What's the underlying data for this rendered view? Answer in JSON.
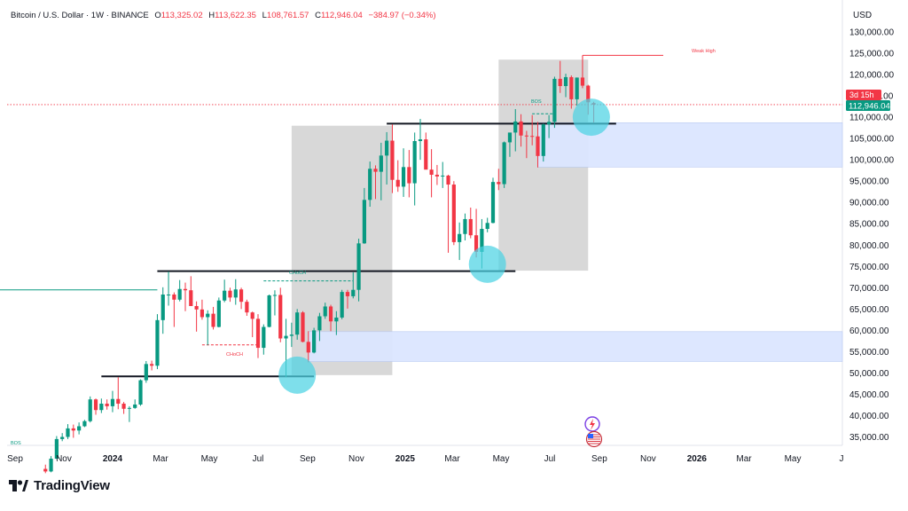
{
  "header": {
    "symbol": "Bitcoin / U.S. Dollar · 1W · BINANCE",
    "o_label": "O",
    "o_value": "113,325.02",
    "h_label": "H",
    "h_value": "113,622.35",
    "l_label": "L",
    "l_value": "108,761.57",
    "c_label": "C",
    "c_value": "112,946.04",
    "change": "−384.97 (−0.34%)"
  },
  "currency": "USD",
  "brand": "TradingView",
  "price_tag": {
    "countdown": "3d 15h",
    "price": "112,946.04"
  },
  "annotations": {
    "bos_left": "BOS",
    "bos_top": "BOS",
    "choch_mid": "CHoCH",
    "choch_low": "CHoCH",
    "weak_high": "Weak High"
  },
  "colors": {
    "up": "#089981",
    "down": "#f23645",
    "zone_gray": "#c8c8c8",
    "zone_blue": "#dbe6ff",
    "circle": "#4cd3e3",
    "level_line": "#131722"
  },
  "chart_data": {
    "type": "candlestick",
    "title": "Bitcoin / U.S. Dollar · 1W · BINANCE",
    "y_axis": {
      "unit": "USD",
      "ticks": [
        35000,
        40000,
        45000,
        50000,
        55000,
        60000,
        65000,
        70000,
        75000,
        80000,
        85000,
        90000,
        95000,
        100000,
        105000,
        110000,
        115000,
        120000,
        125000,
        130000
      ],
      "tick_labels": [
        "35,000.00",
        "40,000.00",
        "45,000.00",
        "50,000.00",
        "55,000.00",
        "60,000.00",
        "65,000.00",
        "70,000.00",
        "75,000.00",
        "80,000.00",
        "85,000.00",
        "90,000.00",
        "95,000.00",
        "100,000.00",
        "105,000.00",
        "110,000.00",
        "115,000.00",
        "120,000.00",
        "125,000.00",
        "130,000.00"
      ]
    },
    "x_axis": {
      "ticks": [
        {
          "label": "Sep",
          "date": "2023-09-01",
          "bold": false
        },
        {
          "label": "Nov",
          "date": "2023-11-01",
          "bold": false
        },
        {
          "label": "2024",
          "date": "2024-01-01",
          "bold": true
        },
        {
          "label": "Mar",
          "date": "2024-03-01",
          "bold": false
        },
        {
          "label": "May",
          "date": "2024-05-01",
          "bold": false
        },
        {
          "label": "Jul",
          "date": "2024-07-01",
          "bold": false
        },
        {
          "label": "Sep",
          "date": "2024-09-01",
          "bold": false
        },
        {
          "label": "Nov",
          "date": "2024-11-01",
          "bold": false
        },
        {
          "label": "2025",
          "date": "2025-01-01",
          "bold": true
        },
        {
          "label": "Mar",
          "date": "2025-03-01",
          "bold": false
        },
        {
          "label": "May",
          "date": "2025-05-01",
          "bold": false
        },
        {
          "label": "Jul",
          "date": "2025-07-01",
          "bold": false
        },
        {
          "label": "Sep",
          "date": "2025-09-01",
          "bold": false
        },
        {
          "label": "Nov",
          "date": "2025-11-01",
          "bold": false
        },
        {
          "label": "2026",
          "date": "2026-01-01",
          "bold": true
        },
        {
          "label": "Mar",
          "date": "2026-03-01",
          "bold": false
        },
        {
          "label": "May",
          "date": "2026-05-01",
          "bold": false
        },
        {
          "label": "J",
          "date": "2026-07-01",
          "bold": false
        }
      ]
    },
    "last_price": 112946.04,
    "candles": [
      {
        "d": "2023-10-09",
        "o": 27500,
        "h": 28500,
        "l": 26500,
        "c": 26900
      },
      {
        "d": "2023-10-16",
        "o": 26900,
        "h": 30500,
        "l": 26700,
        "c": 29900
      },
      {
        "d": "2023-10-23",
        "o": 29900,
        "h": 35200,
        "l": 29800,
        "c": 34500
      },
      {
        "d": "2023-10-30",
        "o": 34500,
        "h": 35900,
        "l": 34000,
        "c": 35000
      },
      {
        "d": "2023-11-06",
        "o": 35000,
        "h": 38000,
        "l": 34500,
        "c": 37000
      },
      {
        "d": "2023-11-13",
        "o": 37000,
        "h": 37900,
        "l": 34800,
        "c": 36500
      },
      {
        "d": "2023-11-20",
        "o": 36500,
        "h": 38400,
        "l": 35600,
        "c": 37500
      },
      {
        "d": "2023-11-27",
        "o": 37500,
        "h": 39000,
        "l": 37300,
        "c": 38700
      },
      {
        "d": "2023-12-04",
        "o": 38700,
        "h": 44500,
        "l": 38400,
        "c": 43800
      },
      {
        "d": "2023-12-11",
        "o": 43800,
        "h": 44000,
        "l": 40200,
        "c": 41300
      },
      {
        "d": "2023-12-18",
        "o": 41300,
        "h": 44000,
        "l": 40600,
        "c": 42800
      },
      {
        "d": "2023-12-25",
        "o": 42800,
        "h": 43800,
        "l": 41400,
        "c": 42200
      },
      {
        "d": "2024-01-01",
        "o": 42200,
        "h": 45800,
        "l": 40800,
        "c": 43900
      },
      {
        "d": "2024-01-08",
        "o": 43900,
        "h": 49000,
        "l": 41500,
        "c": 42800
      },
      {
        "d": "2024-01-15",
        "o": 42800,
        "h": 43200,
        "l": 40400,
        "c": 41600
      },
      {
        "d": "2024-01-22",
        "o": 41600,
        "h": 42200,
        "l": 38500,
        "c": 41800
      },
      {
        "d": "2024-01-29",
        "o": 41800,
        "h": 43800,
        "l": 41600,
        "c": 42600
      },
      {
        "d": "2024-02-05",
        "o": 42600,
        "h": 48500,
        "l": 42300,
        "c": 48300
      },
      {
        "d": "2024-02-12",
        "o": 48300,
        "h": 52800,
        "l": 47700,
        "c": 52100
      },
      {
        "d": "2024-02-19",
        "o": 52100,
        "h": 52900,
        "l": 50600,
        "c": 51700
      },
      {
        "d": "2024-02-26",
        "o": 51700,
        "h": 63800,
        "l": 50900,
        "c": 62400
      },
      {
        "d": "2024-03-04",
        "o": 62400,
        "h": 70100,
        "l": 59200,
        "c": 68400
      },
      {
        "d": "2024-03-11",
        "o": 68400,
        "h": 73800,
        "l": 65800,
        "c": 68400
      },
      {
        "d": "2024-03-18",
        "o": 68400,
        "h": 68900,
        "l": 60800,
        "c": 67200
      },
      {
        "d": "2024-03-25",
        "o": 67200,
        "h": 71800,
        "l": 66800,
        "c": 69700
      },
      {
        "d": "2024-04-01",
        "o": 69700,
        "h": 71200,
        "l": 64500,
        "c": 69400
      },
      {
        "d": "2024-04-08",
        "o": 69400,
        "h": 72700,
        "l": 66400,
        "c": 65700
      },
      {
        "d": "2024-04-15",
        "o": 65700,
        "h": 66800,
        "l": 59700,
        "c": 64900
      },
      {
        "d": "2024-04-22",
        "o": 64900,
        "h": 67200,
        "l": 62500,
        "c": 63100
      },
      {
        "d": "2024-04-29",
        "o": 63100,
        "h": 64700,
        "l": 56500,
        "c": 63900
      },
      {
        "d": "2024-05-06",
        "o": 63900,
        "h": 65500,
        "l": 60200,
        "c": 60800
      },
      {
        "d": "2024-05-13",
        "o": 60800,
        "h": 67700,
        "l": 60700,
        "c": 67000
      },
      {
        "d": "2024-05-20",
        "o": 67000,
        "h": 71900,
        "l": 66600,
        "c": 69300
      },
      {
        "d": "2024-05-27",
        "o": 69300,
        "h": 70000,
        "l": 66700,
        "c": 67700
      },
      {
        "d": "2024-06-03",
        "o": 67700,
        "h": 72000,
        "l": 66000,
        "c": 69600
      },
      {
        "d": "2024-06-10",
        "o": 69600,
        "h": 70000,
        "l": 65000,
        "c": 66700
      },
      {
        "d": "2024-06-17",
        "o": 66700,
        "h": 67200,
        "l": 63400,
        "c": 64200
      },
      {
        "d": "2024-06-24",
        "o": 64200,
        "h": 64400,
        "l": 58400,
        "c": 62700
      },
      {
        "d": "2024-07-01",
        "o": 62700,
        "h": 63800,
        "l": 53500,
        "c": 55900
      },
      {
        "d": "2024-07-08",
        "o": 55900,
        "h": 61400,
        "l": 54300,
        "c": 60800
      },
      {
        "d": "2024-07-15",
        "o": 60800,
        "h": 68400,
        "l": 60700,
        "c": 68200
      },
      {
        "d": "2024-07-22",
        "o": 68200,
        "h": 69400,
        "l": 63500,
        "c": 68300
      },
      {
        "d": "2024-07-29",
        "o": 68300,
        "h": 70000,
        "l": 57200,
        "c": 58100
      },
      {
        "d": "2024-08-05",
        "o": 58100,
        "h": 62700,
        "l": 49000,
        "c": 58700
      },
      {
        "d": "2024-08-12",
        "o": 58700,
        "h": 61800,
        "l": 56100,
        "c": 59000
      },
      {
        "d": "2024-08-19",
        "o": 59000,
        "h": 65000,
        "l": 57800,
        "c": 64200
      },
      {
        "d": "2024-08-26",
        "o": 64200,
        "h": 64500,
        "l": 57200,
        "c": 57300
      },
      {
        "d": "2024-09-02",
        "o": 57300,
        "h": 59800,
        "l": 52500,
        "c": 54800
      },
      {
        "d": "2024-09-09",
        "o": 54800,
        "h": 60600,
        "l": 54600,
        "c": 60000
      },
      {
        "d": "2024-09-16",
        "o": 60000,
        "h": 64100,
        "l": 57500,
        "c": 63300
      },
      {
        "d": "2024-09-23",
        "o": 63300,
        "h": 66500,
        "l": 62700,
        "c": 65600
      },
      {
        "d": "2024-09-30",
        "o": 65600,
        "h": 66000,
        "l": 59800,
        "c": 62100
      },
      {
        "d": "2024-10-07",
        "o": 62100,
        "h": 64500,
        "l": 58900,
        "c": 63000
      },
      {
        "d": "2024-10-14",
        "o": 63000,
        "h": 69500,
        "l": 62600,
        "c": 69000
      },
      {
        "d": "2024-10-21",
        "o": 69000,
        "h": 69500,
        "l": 65100,
        "c": 68000
      },
      {
        "d": "2024-10-28",
        "o": 68000,
        "h": 73600,
        "l": 67500,
        "c": 69500
      },
      {
        "d": "2024-11-04",
        "o": 69500,
        "h": 81500,
        "l": 66800,
        "c": 80400
      },
      {
        "d": "2024-11-11",
        "o": 80400,
        "h": 93400,
        "l": 80300,
        "c": 90600
      },
      {
        "d": "2024-11-18",
        "o": 90600,
        "h": 99600,
        "l": 89000,
        "c": 97900
      },
      {
        "d": "2024-11-25",
        "o": 97900,
        "h": 98700,
        "l": 90800,
        "c": 97200
      },
      {
        "d": "2024-12-02",
        "o": 97200,
        "h": 104000,
        "l": 90500,
        "c": 101000
      },
      {
        "d": "2024-12-09",
        "o": 101000,
        "h": 106500,
        "l": 94200,
        "c": 104500
      },
      {
        "d": "2024-12-16",
        "o": 104500,
        "h": 108300,
        "l": 92200,
        "c": 95300
      },
      {
        "d": "2024-12-23",
        "o": 95300,
        "h": 99900,
        "l": 92500,
        "c": 93700
      },
      {
        "d": "2024-12-30",
        "o": 93700,
        "h": 102700,
        "l": 91300,
        "c": 98300
      },
      {
        "d": "2025-01-06",
        "o": 98300,
        "h": 102300,
        "l": 91200,
        "c": 94500
      },
      {
        "d": "2025-01-13",
        "o": 94500,
        "h": 106400,
        "l": 89300,
        "c": 104400
      },
      {
        "d": "2025-01-20",
        "o": 104400,
        "h": 109600,
        "l": 100000,
        "c": 104800
      },
      {
        "d": "2025-01-27",
        "o": 104800,
        "h": 106400,
        "l": 97800,
        "c": 97700
      },
      {
        "d": "2025-02-03",
        "o": 97700,
        "h": 102500,
        "l": 91200,
        "c": 96500
      },
      {
        "d": "2025-02-10",
        "o": 96500,
        "h": 98800,
        "l": 94100,
        "c": 96100
      },
      {
        "d": "2025-02-17",
        "o": 96100,
        "h": 99500,
        "l": 93400,
        "c": 96300
      },
      {
        "d": "2025-02-24",
        "o": 96300,
        "h": 96500,
        "l": 78200,
        "c": 94200
      },
      {
        "d": "2025-03-03",
        "o": 94200,
        "h": 95000,
        "l": 80000,
        "c": 80700
      },
      {
        "d": "2025-03-10",
        "o": 80700,
        "h": 85300,
        "l": 76500,
        "c": 82600
      },
      {
        "d": "2025-03-17",
        "o": 82600,
        "h": 87400,
        "l": 81100,
        "c": 86100
      },
      {
        "d": "2025-03-24",
        "o": 86100,
        "h": 88800,
        "l": 81600,
        "c": 82300
      },
      {
        "d": "2025-03-31",
        "o": 82300,
        "h": 88500,
        "l": 77100,
        "c": 78400
      },
      {
        "d": "2025-04-07",
        "o": 78400,
        "h": 86100,
        "l": 74500,
        "c": 83800
      },
      {
        "d": "2025-04-14",
        "o": 83800,
        "h": 86400,
        "l": 83000,
        "c": 85200
      },
      {
        "d": "2025-04-21",
        "o": 85200,
        "h": 95800,
        "l": 85100,
        "c": 94800
      },
      {
        "d": "2025-04-28",
        "o": 94800,
        "h": 97900,
        "l": 92900,
        "c": 94300
      },
      {
        "d": "2025-05-05",
        "o": 94300,
        "h": 104300,
        "l": 93400,
        "c": 104100
      },
      {
        "d": "2025-05-12",
        "o": 104100,
        "h": 105800,
        "l": 100700,
        "c": 106400
      },
      {
        "d": "2025-05-19",
        "o": 106400,
        "h": 111900,
        "l": 102000,
        "c": 109000
      },
      {
        "d": "2025-05-26",
        "o": 109000,
        "h": 110700,
        "l": 103100,
        "c": 105700
      },
      {
        "d": "2025-06-02",
        "o": 105700,
        "h": 106800,
        "l": 100400,
        "c": 105600
      },
      {
        "d": "2025-06-09",
        "o": 105600,
        "h": 110500,
        "l": 103400,
        "c": 105500
      },
      {
        "d": "2025-06-16",
        "o": 105500,
        "h": 108900,
        "l": 98200,
        "c": 100900
      },
      {
        "d": "2025-06-23",
        "o": 100900,
        "h": 108500,
        "l": 99600,
        "c": 108300
      },
      {
        "d": "2025-06-30",
        "o": 108300,
        "h": 110500,
        "l": 105100,
        "c": 108900
      },
      {
        "d": "2025-07-07",
        "o": 108900,
        "h": 119500,
        "l": 107500,
        "c": 119000
      },
      {
        "d": "2025-07-14",
        "o": 119000,
        "h": 123200,
        "l": 115700,
        "c": 117300
      },
      {
        "d": "2025-07-21",
        "o": 117300,
        "h": 120200,
        "l": 114700,
        "c": 119400
      },
      {
        "d": "2025-07-28",
        "o": 119400,
        "h": 119800,
        "l": 112000,
        "c": 114200
      },
      {
        "d": "2025-08-04",
        "o": 114200,
        "h": 119300,
        "l": 112700,
        "c": 119300
      },
      {
        "d": "2025-08-11",
        "o": 119300,
        "h": 124500,
        "l": 116800,
        "c": 117400
      },
      {
        "d": "2025-08-18",
        "o": 117400,
        "h": 117600,
        "l": 110600,
        "c": 113500
      },
      {
        "d": "2025-08-25",
        "o": 113325.02,
        "h": 113622.35,
        "l": 108761.57,
        "c": 112946.04
      }
    ],
    "zones": [
      {
        "kind": "gray",
        "x0": "2024-08-12",
        "x1": "2024-12-16",
        "y0": 49500,
        "y1": 108000
      },
      {
        "kind": "gray",
        "x0": "2025-04-28",
        "x1": "2025-08-18",
        "y0": 74000,
        "y1": 123500
      },
      {
        "kind": "blue",
        "x0": "2025-06-16",
        "x1": "2026-07-20",
        "y0": 98300,
        "y1": 108700
      },
      {
        "kind": "blue",
        "x0": "2024-09-02",
        "x1": "2026-07-20",
        "y0": 52700,
        "y1": 59700
      }
    ],
    "levels": [
      {
        "x0": "2023-12-18",
        "x1": "2024-09-09",
        "y": 49200,
        "color": "#131722"
      },
      {
        "x0": "2024-02-26",
        "x1": "2025-05-19",
        "y": 73900,
        "color": "#131722"
      },
      {
        "x0": "2024-12-09",
        "x1": "2025-09-22",
        "y": 108500,
        "color": "#131722"
      },
      {
        "x0": "2023-07-15",
        "x1": "2024-02-26",
        "y": 69500,
        "color": "#089981"
      }
    ],
    "circles": [
      {
        "x": "2024-08-19",
        "y": 49500
      },
      {
        "x": "2025-04-14",
        "y": 75500
      },
      {
        "x": "2025-08-22",
        "y": 110000
      }
    ]
  }
}
